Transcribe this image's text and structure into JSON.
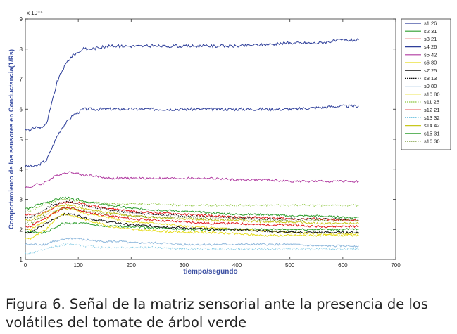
{
  "caption": "Figura 6. Señal de la matriz sensorial ante la presencia de los volátiles del tomate de árbol verde",
  "chart_data": {
    "type": "line",
    "xlabel": "tiempo/segundo",
    "ylabel": "Comportamiento de los sensores en Conductancia(1/Rs)",
    "y_multiplier": "x 10⁻⁵",
    "xlim": [
      0,
      700
    ],
    "ylim": [
      1,
      9
    ],
    "x_ticks": [
      "0",
      "100",
      "200",
      "300",
      "400",
      "500",
      "600",
      "700"
    ],
    "y_ticks": [
      "1",
      "2",
      "3",
      "4",
      "5",
      "6",
      "7",
      "8",
      "9"
    ],
    "legend_position": "right, outside plot",
    "x": [
      0,
      10,
      20,
      30,
      40,
      50,
      60,
      70,
      80,
      90,
      100,
      110,
      120,
      140,
      160,
      180,
      200,
      250,
      300,
      350,
      400,
      450,
      500,
      550,
      600,
      630
    ],
    "series": [
      {
        "name": "s1 26",
        "color": "#2e3f9a",
        "style": "solid",
        "values": [
          5.3,
          5.3,
          5.4,
          5.4,
          5.5,
          6.2,
          6.9,
          7.3,
          7.6,
          7.8,
          7.9,
          8.0,
          8.0,
          8.05,
          8.1,
          8.1,
          8.1,
          8.1,
          8.1,
          8.1,
          8.1,
          8.15,
          8.2,
          8.2,
          8.3,
          8.3
        ]
      },
      {
        "name": "s2 31",
        "color": "#2e9e2e",
        "style": "solid",
        "values": [
          1.9,
          1.9,
          1.9,
          1.9,
          1.9,
          2.0,
          2.1,
          2.2,
          2.2,
          2.2,
          2.2,
          2.2,
          2.2,
          2.1,
          2.1,
          2.1,
          2.1,
          2.05,
          2.0,
          2.0,
          2.0,
          2.0,
          2.0,
          2.0,
          2.0,
          2.0
        ]
      },
      {
        "name": "s3 21",
        "color": "#e01a1a",
        "style": "solid",
        "values": [
          2.5,
          2.5,
          2.5,
          2.5,
          2.6,
          2.7,
          2.8,
          2.9,
          2.9,
          2.9,
          2.9,
          2.85,
          2.8,
          2.75,
          2.7,
          2.65,
          2.6,
          2.55,
          2.5,
          2.45,
          2.4,
          2.4,
          2.35,
          2.35,
          2.3,
          2.3
        ]
      },
      {
        "name": "s4 26",
        "color": "#2e3f9a",
        "style": "solid",
        "values": [
          4.1,
          4.1,
          4.1,
          4.2,
          4.3,
          4.7,
          5.1,
          5.4,
          5.6,
          5.8,
          5.9,
          6.0,
          6.0,
          6.0,
          6.0,
          6.0,
          6.0,
          6.0,
          6.0,
          6.0,
          6.0,
          6.0,
          6.0,
          6.05,
          6.1,
          6.1
        ]
      },
      {
        "name": "s5 42",
        "color": "#b03aa0",
        "style": "solid",
        "values": [
          3.4,
          3.4,
          3.5,
          3.5,
          3.6,
          3.7,
          3.8,
          3.85,
          3.9,
          3.9,
          3.85,
          3.8,
          3.8,
          3.75,
          3.7,
          3.7,
          3.7,
          3.7,
          3.7,
          3.7,
          3.65,
          3.65,
          3.6,
          3.6,
          3.6,
          3.6
        ]
      },
      {
        "name": "s6 80",
        "color": "#e6dc1e",
        "style": "solid",
        "values": [
          2.0,
          2.0,
          2.1,
          2.2,
          2.3,
          2.5,
          2.6,
          2.7,
          2.7,
          2.7,
          2.6,
          2.55,
          2.5,
          2.45,
          2.4,
          2.3,
          2.25,
          2.2,
          2.1,
          2.05,
          2.0,
          1.95,
          1.9,
          1.85,
          1.85,
          1.85
        ]
      },
      {
        "name": "s7 25",
        "color": "#111111",
        "style": "solid",
        "values": [
          1.9,
          1.9,
          2.0,
          2.1,
          2.2,
          2.3,
          2.4,
          2.5,
          2.5,
          2.5,
          2.45,
          2.4,
          2.35,
          2.3,
          2.25,
          2.2,
          2.15,
          2.1,
          2.05,
          2.0,
          2.0,
          1.95,
          1.9,
          1.9,
          1.9,
          1.9
        ]
      },
      {
        "name": "s8 13",
        "color": "#111111",
        "style": "dotted",
        "values": [
          2.4,
          2.4,
          2.5,
          2.6,
          2.7,
          2.8,
          2.85,
          2.9,
          2.95,
          2.9,
          2.85,
          2.8,
          2.75,
          2.7,
          2.65,
          2.6,
          2.55,
          2.5,
          2.45,
          2.4,
          2.4,
          2.35,
          2.35,
          2.35,
          2.35,
          2.35
        ]
      },
      {
        "name": "s9 80",
        "color": "#8fb8dc",
        "style": "solid",
        "values": [
          1.5,
          1.5,
          1.5,
          1.5,
          1.5,
          1.6,
          1.6,
          1.65,
          1.7,
          1.7,
          1.7,
          1.65,
          1.65,
          1.6,
          1.6,
          1.6,
          1.55,
          1.55,
          1.5,
          1.5,
          1.5,
          1.5,
          1.5,
          1.45,
          1.45,
          1.45
        ]
      },
      {
        "name": "s10 80",
        "color": "#e6dc1e",
        "style": "solid",
        "values": [
          1.7,
          1.7,
          1.8,
          1.9,
          2.0,
          2.2,
          2.4,
          2.5,
          2.5,
          2.45,
          2.4,
          2.35,
          2.3,
          2.2,
          2.1,
          2.05,
          2.0,
          1.95,
          1.9,
          1.9,
          1.85,
          1.8,
          1.8,
          1.8,
          1.8,
          1.8
        ]
      },
      {
        "name": "s11 25",
        "color": "#8dc63f",
        "style": "dotted",
        "values": [
          2.6,
          2.6,
          2.7,
          2.8,
          2.85,
          2.9,
          2.95,
          3.0,
          3.0,
          2.95,
          2.95,
          2.9,
          2.9,
          2.9,
          2.85,
          2.85,
          2.85,
          2.85,
          2.8,
          2.8,
          2.8,
          2.8,
          2.8,
          2.8,
          2.8,
          2.8
        ]
      },
      {
        "name": "s12 21",
        "color": "#e01a1a",
        "style": "solid",
        "values": [
          2.1,
          2.1,
          2.2,
          2.3,
          2.4,
          2.5,
          2.6,
          2.7,
          2.7,
          2.7,
          2.65,
          2.6,
          2.55,
          2.5,
          2.45,
          2.4,
          2.35,
          2.3,
          2.25,
          2.2,
          2.2,
          2.15,
          2.15,
          2.1,
          2.1,
          2.1
        ]
      },
      {
        "name": "s13 32",
        "color": "#7ec8e3",
        "style": "dotted",
        "values": [
          1.2,
          1.2,
          1.25,
          1.3,
          1.35,
          1.4,
          1.45,
          1.5,
          1.5,
          1.5,
          1.5,
          1.45,
          1.45,
          1.4,
          1.4,
          1.4,
          1.4,
          1.4,
          1.35,
          1.35,
          1.35,
          1.35,
          1.35,
          1.35,
          1.35,
          1.35
        ]
      },
      {
        "name": "s14 42",
        "color": "#c8c81e",
        "style": "solid",
        "values": [
          2.3,
          2.3,
          2.4,
          2.5,
          2.6,
          2.7,
          2.75,
          2.8,
          2.8,
          2.8,
          2.75,
          2.7,
          2.65,
          2.6,
          2.55,
          2.5,
          2.45,
          2.4,
          2.35,
          2.3,
          2.3,
          2.25,
          2.25,
          2.2,
          2.2,
          2.2
        ]
      },
      {
        "name": "s15 31",
        "color": "#2e9e2e",
        "style": "solid",
        "values": [
          2.7,
          2.7,
          2.8,
          2.85,
          2.9,
          2.95,
          3.0,
          3.05,
          3.05,
          3.0,
          3.0,
          2.95,
          2.9,
          2.85,
          2.8,
          2.75,
          2.7,
          2.65,
          2.6,
          2.55,
          2.5,
          2.5,
          2.45,
          2.45,
          2.4,
          2.4
        ]
      },
      {
        "name": "s16 30",
        "color": "#6b8e23",
        "style": "dotted",
        "values": [
          2.2,
          2.2,
          2.3,
          2.4,
          2.5,
          2.6,
          2.65,
          2.7,
          2.7,
          2.7,
          2.65,
          2.6,
          2.6,
          2.55,
          2.5,
          2.5,
          2.45,
          2.4,
          2.4,
          2.35,
          2.35,
          2.3,
          2.3,
          2.3,
          2.3,
          2.3
        ]
      }
    ]
  }
}
